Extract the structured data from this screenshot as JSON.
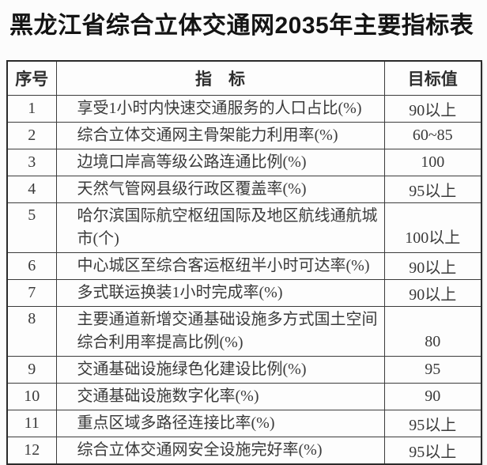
{
  "title": "黑龙江省综合立体交通网2035年主要指标表",
  "table": {
    "headers": {
      "seq": "序号",
      "indicator": "指　标",
      "target": "目标值"
    },
    "rows": [
      {
        "seq": "1",
        "indicator": "享受1小时内快速交通服务的人口占比(%)",
        "target": "90以上"
      },
      {
        "seq": "2",
        "indicator": "综合立体交通网主骨架能力利用率(%)",
        "target": "60~85"
      },
      {
        "seq": "3",
        "indicator": "边境口岸高等级公路连通比例(%)",
        "target": "100"
      },
      {
        "seq": "4",
        "indicator": "天然气管网县级行政区覆盖率(%)",
        "target": "95以上"
      },
      {
        "seq": "5",
        "indicator": "哈尔滨国际航空枢纽国际及地区航线通航城市(个)",
        "target": "100以上",
        "tall": true
      },
      {
        "seq": "6",
        "indicator": "中心城区至综合客运枢纽半小时可达率(%)",
        "target": "90以上"
      },
      {
        "seq": "7",
        "indicator": "多式联运换装1小时完成率(%)",
        "target": "90以上"
      },
      {
        "seq": "8",
        "indicator": "主要通道新增交通基础设施多方式国土空间综合利用率提高比例(%)",
        "target": "80",
        "tall": true
      },
      {
        "seq": "9",
        "indicator": "交通基础设施绿色化建设比例(%)",
        "target": "95"
      },
      {
        "seq": "10",
        "indicator": "交通基础设施数字化率(%)",
        "target": "90"
      },
      {
        "seq": "11",
        "indicator": "重点区域多路径连接比率(%)",
        "target": "95以上"
      },
      {
        "seq": "12",
        "indicator": "综合立体交通网安全设施完好率(%)",
        "target": "95以上"
      }
    ]
  },
  "colors": {
    "title_text": "#141414",
    "body_text": "#3a3a3a",
    "table_border": "#2b2b2b",
    "background": "#fcfcfc"
  }
}
